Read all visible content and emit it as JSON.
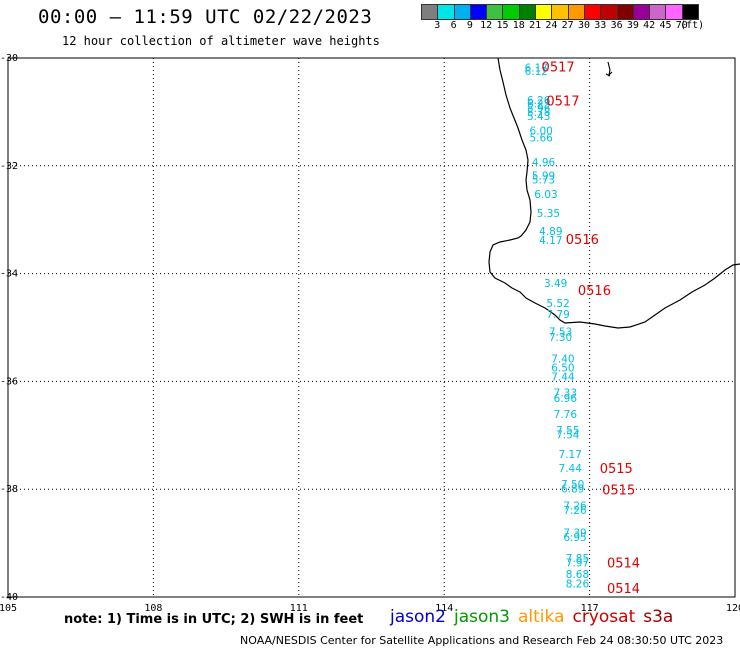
{
  "title": "00:00 – 11:59 UTC 02/22/2023",
  "subtitle": "12 hour collection of altimeter wave heights",
  "colorbar": {
    "colors": [
      "#7f7f7f",
      "#00e5e5",
      "#00b0f0",
      "#0000ff",
      "#40c040",
      "#00cc00",
      "#008000",
      "#ffff00",
      "#ffc000",
      "#ff9900",
      "#ff0000",
      "#c00000",
      "#800000",
      "#990099",
      "#cc66cc",
      "#ff66ff",
      "#000000"
    ],
    "labels": [
      "3",
      "6",
      "9",
      "12",
      "15",
      "18",
      "21",
      "24",
      "27",
      "30",
      "33",
      "36",
      "39",
      "42",
      "45",
      "70",
      "(ft)"
    ]
  },
  "axes": {
    "lat_labels": [
      "-30",
      "-32",
      "-34",
      "-36",
      "-38",
      "-40"
    ],
    "lon_labels": [
      "105",
      "108",
      "111",
      "114",
      "117",
      "120"
    ],
    "lat_range": [
      -30,
      -40
    ],
    "lon_range": [
      105,
      120
    ],
    "grid": "dotted"
  },
  "wave_heights": [
    {
      "v": "6.17",
      "lon": 115.9,
      "lat": -30.25
    },
    {
      "v": "6.12",
      "lon": 115.9,
      "lat": -30.32
    },
    {
      "v": "6.26",
      "lon": 115.95,
      "lat": -30.85
    },
    {
      "v": "6.25",
      "lon": 115.95,
      "lat": -30.92
    },
    {
      "v": "5.96",
      "lon": 115.95,
      "lat": -31.0
    },
    {
      "v": "5.78",
      "lon": 115.95,
      "lat": -31.08
    },
    {
      "v": "5.43",
      "lon": 115.95,
      "lat": -31.15
    },
    {
      "v": "6.00",
      "lon": 116.0,
      "lat": -31.42
    },
    {
      "v": "5.66",
      "lon": 116.0,
      "lat": -31.55
    },
    {
      "v": "4.96",
      "lon": 116.05,
      "lat": -32.0
    },
    {
      "v": "5.99",
      "lon": 116.05,
      "lat": -32.25
    },
    {
      "v": "5.73",
      "lon": 116.05,
      "lat": -32.33
    },
    {
      "v": "6.03",
      "lon": 116.1,
      "lat": -32.6
    },
    {
      "v": "5.35",
      "lon": 116.15,
      "lat": -32.95
    },
    {
      "v": "4.89",
      "lon": 116.2,
      "lat": -33.28
    },
    {
      "v": "4.17",
      "lon": 116.2,
      "lat": -33.45
    },
    {
      "v": "3.49",
      "lon": 116.3,
      "lat": -34.25
    },
    {
      "v": "5.52",
      "lon": 116.35,
      "lat": -34.62
    },
    {
      "v": "7.79",
      "lon": 116.35,
      "lat": -34.82
    },
    {
      "v": "7.53",
      "lon": 116.4,
      "lat": -35.15
    },
    {
      "v": "7.30",
      "lon": 116.4,
      "lat": -35.25
    },
    {
      "v": "7.40",
      "lon": 116.45,
      "lat": -35.65
    },
    {
      "v": "6.50",
      "lon": 116.45,
      "lat": -35.82
    },
    {
      "v": "7.44",
      "lon": 116.45,
      "lat": -35.98
    },
    {
      "v": "7.33",
      "lon": 116.5,
      "lat": -36.28
    },
    {
      "v": "6.96",
      "lon": 116.5,
      "lat": -36.38
    },
    {
      "v": "7.76",
      "lon": 116.5,
      "lat": -36.68
    },
    {
      "v": "7.55",
      "lon": 116.55,
      "lat": -36.98
    },
    {
      "v": "7.54",
      "lon": 116.55,
      "lat": -37.06
    },
    {
      "v": "7.17",
      "lon": 116.6,
      "lat": -37.42
    },
    {
      "v": "7.44",
      "lon": 116.6,
      "lat": -37.68
    },
    {
      "v": "7.50",
      "lon": 116.65,
      "lat": -37.98
    },
    {
      "v": "6.89",
      "lon": 116.65,
      "lat": -38.06
    },
    {
      "v": "7.26",
      "lon": 116.7,
      "lat": -38.38
    },
    {
      "v": "7.26",
      "lon": 116.7,
      "lat": -38.46
    },
    {
      "v": "7.39",
      "lon": 116.7,
      "lat": -38.88
    },
    {
      "v": "6.95",
      "lon": 116.7,
      "lat": -38.96
    },
    {
      "v": "7.85",
      "lon": 116.75,
      "lat": -39.35
    },
    {
      "v": "7.97",
      "lon": 116.75,
      "lat": -39.43
    },
    {
      "v": "8.68",
      "lon": 116.75,
      "lat": -39.65
    },
    {
      "v": "8.26",
      "lon": 116.75,
      "lat": -39.82
    }
  ],
  "pass_times": [
    {
      "t": "0517",
      "lon": 116.35,
      "lat": -30.25
    },
    {
      "t": "0517",
      "lon": 116.45,
      "lat": -30.88
    },
    {
      "t": "0516",
      "lon": 116.85,
      "lat": -33.45
    },
    {
      "t": "0516",
      "lon": 117.1,
      "lat": -34.4
    },
    {
      "t": "0515",
      "lon": 117.55,
      "lat": -37.7
    },
    {
      "t": "0515",
      "lon": 117.6,
      "lat": -38.1
    },
    {
      "t": "0514",
      "lon": 117.7,
      "lat": -39.45
    },
    {
      "t": "0514",
      "lon": 117.7,
      "lat": -39.93
    }
  ],
  "note": "note: 1) Time is in UTC; 2) SWH is in feet",
  "legend": [
    {
      "label": "jason2",
      "color": "#0000cc"
    },
    {
      "label": "jason3",
      "color": "#009900"
    },
    {
      "label": "altika",
      "color": "#ff9900"
    },
    {
      "label": "cryosat",
      "color": "#cc0000"
    },
    {
      "label": "s3a",
      "color": "#990000"
    }
  ],
  "footer": "NOAA/NESDIS Center for Satellite Applications and Research    Feb 24 08:30:50 UTC 2023"
}
